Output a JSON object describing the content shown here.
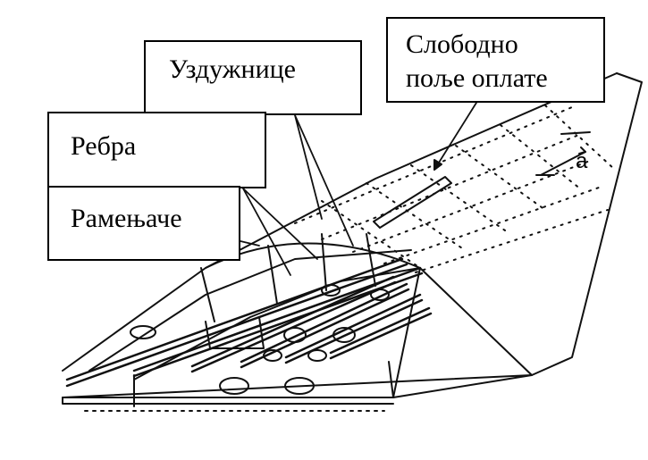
{
  "labels": {
    "free_panel_line1": "Слободно",
    "free_panel_line2": "поље оплате",
    "stringers": "Уздужнице",
    "ribs": "Ребра",
    "spars": "Рамењаче"
  },
  "dimension_symbol": "a",
  "icons": [
    "wing-structure-illustration"
  ],
  "colors": {
    "ink": "#000000",
    "background": "#ffffff"
  }
}
